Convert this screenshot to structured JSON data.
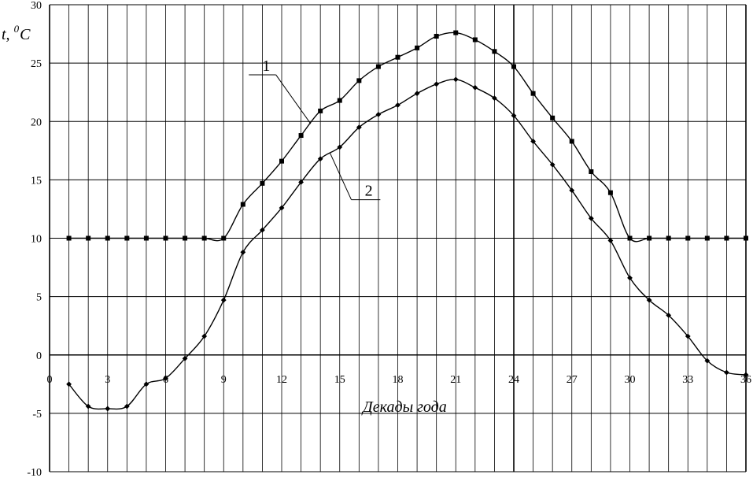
{
  "chart_data": {
    "type": "line",
    "title": "",
    "xlabel": "Декады года",
    "ylabel_main": "t,",
    "ylabel_sup": "0",
    "ylabel_unit": "C",
    "xlim": [
      0,
      36
    ],
    "ylim": [
      -10,
      30
    ],
    "grid": true,
    "x_ticks": [
      0,
      3,
      6,
      9,
      12,
      15,
      18,
      21,
      24,
      27,
      30,
      33,
      36
    ],
    "y_ticks": [
      -10,
      -5,
      0,
      5,
      10,
      15,
      20,
      25,
      30
    ],
    "series": [
      {
        "name": "1",
        "marker": "square",
        "x": [
          1,
          2,
          3,
          4,
          5,
          6,
          7,
          8,
          9,
          10,
          11,
          12,
          13,
          14,
          15,
          16,
          17,
          18,
          19,
          20,
          21,
          22,
          23,
          24,
          25,
          26,
          27,
          28,
          29,
          30,
          31,
          32,
          33,
          34,
          35,
          36
        ],
        "y": [
          10,
          10,
          10,
          10,
          10,
          10,
          10,
          10,
          10,
          12.9,
          14.7,
          16.6,
          18.8,
          20.9,
          21.8,
          23.5,
          24.7,
          25.5,
          26.3,
          27.3,
          27.6,
          27,
          26,
          24.7,
          22.4,
          20.3,
          18.3,
          15.7,
          13.9,
          10,
          10,
          10,
          10,
          10,
          10,
          10
        ]
      },
      {
        "name": "2",
        "marker": "diamond",
        "x": [
          1,
          2,
          3,
          4,
          5,
          6,
          7,
          8,
          9,
          10,
          11,
          12,
          13,
          14,
          15,
          16,
          17,
          18,
          19,
          20,
          21,
          22,
          23,
          24,
          25,
          26,
          27,
          28,
          29,
          30,
          31,
          32,
          33,
          34,
          35,
          36
        ],
        "y": [
          -2.5,
          -4.4,
          -4.6,
          -4.4,
          -2.5,
          -2,
          -0.3,
          1.6,
          4.7,
          8.8,
          10.7,
          12.6,
          14.8,
          16.8,
          17.8,
          19.5,
          20.6,
          21.4,
          22.4,
          23.2,
          23.6,
          22.9,
          22,
          20.5,
          18.3,
          16.3,
          14.1,
          11.7,
          9.8,
          6.6,
          4.7,
          3.4,
          1.6,
          -0.5,
          -1.5,
          -1.7
        ]
      }
    ],
    "curve_labels": [
      {
        "text": "1",
        "series": 0
      },
      {
        "text": "2",
        "series": 1
      }
    ]
  }
}
